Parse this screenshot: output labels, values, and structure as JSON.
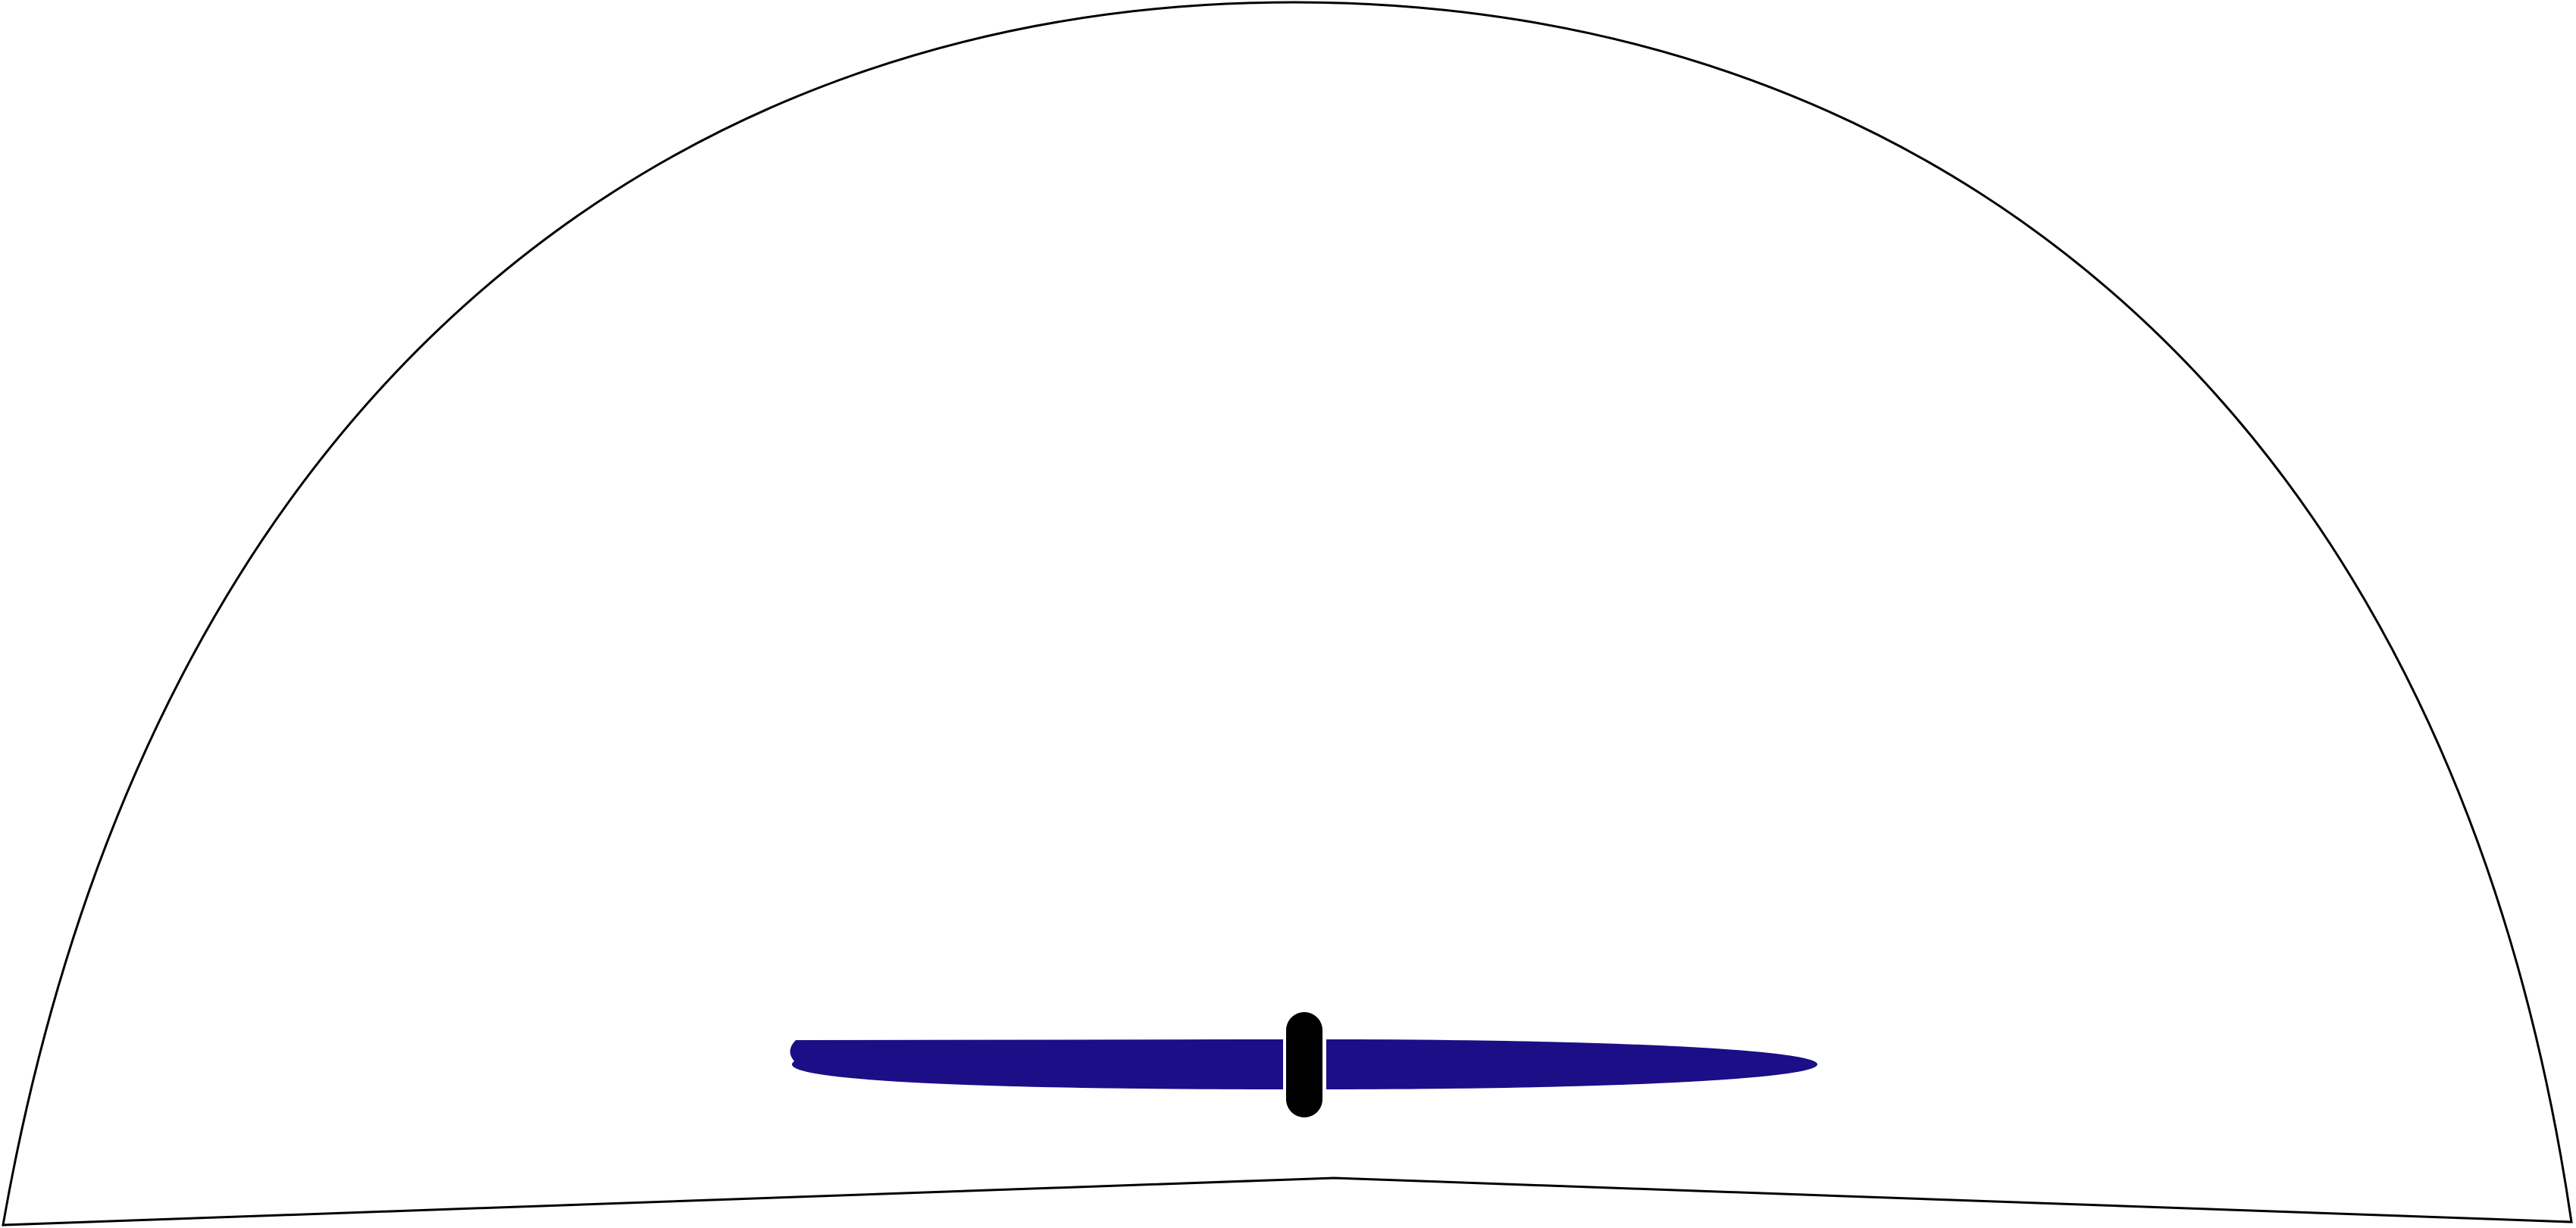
{
  "diagram": {
    "background_color": "#ffffff",
    "outline_color": "#000000",
    "blade_color": "#1b0e87",
    "hub_color": "#000000",
    "separator_color": "#ffffff",
    "shapes": [
      {
        "name": "dome-outline",
        "shape": "dome"
      },
      {
        "name": "left-blade",
        "shape": "half-ellipse"
      },
      {
        "name": "right-blade",
        "shape": "half-ellipse"
      },
      {
        "name": "hub",
        "shape": "capsule"
      }
    ]
  }
}
